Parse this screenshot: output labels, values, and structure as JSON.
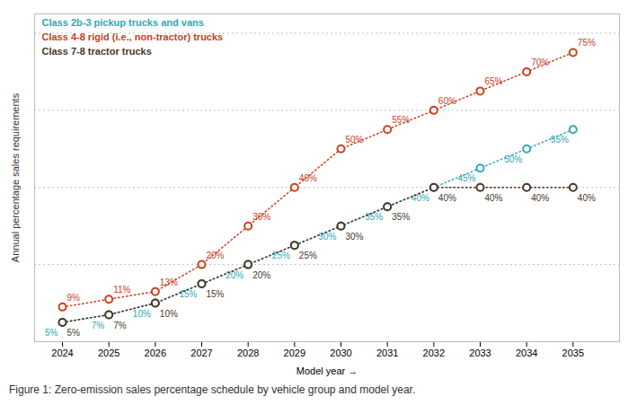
{
  "chart_data": {
    "type": "line",
    "x_label": "Model year",
    "y_label": "Annual percentage sales requirements",
    "caption": "Figure 1: Zero-emission sales percentage schedule by vehicle group and model year.",
    "x": [
      2024,
      2025,
      2026,
      2027,
      2028,
      2029,
      2030,
      2031,
      2032,
      2033,
      2034,
      2035
    ],
    "series": [
      {
        "name": "Class 2b-3 pickup trucks and vans",
        "color": "#2fa8b5",
        "values": [
          5,
          7,
          10,
          15,
          20,
          25,
          30,
          35,
          40,
          45,
          50,
          55
        ],
        "value_labels": [
          "5%",
          "7%",
          "10%",
          "15%",
          "20%",
          "25%",
          "30%",
          "35%",
          "40%",
          "45%",
          "50%",
          "55%"
        ]
      },
      {
        "name": "Class 4-8 rigid (i.e., non-tractor) trucks",
        "color": "#c9401e",
        "values": [
          9,
          11,
          13,
          20,
          30,
          40,
          50,
          55,
          60,
          65,
          70,
          75
        ],
        "value_labels": [
          "9%",
          "11%",
          "13%",
          "20%",
          "30%",
          "40%",
          "50%",
          "55%",
          "60%",
          "65%",
          "70%",
          "75%"
        ]
      },
      {
        "name": "Class 7-8 tractor trucks",
        "color": "#4a3728",
        "values": [
          5,
          7,
          10,
          15,
          20,
          25,
          30,
          35,
          40,
          40,
          40,
          40
        ],
        "value_labels": [
          "5%",
          "7%",
          "10%",
          "15%",
          "20%",
          "25%",
          "30%",
          "35%",
          "40%",
          "40%",
          "40%",
          "40%"
        ]
      }
    ],
    "xlim": [
      2023.4,
      2036.0
    ],
    "xticks": [
      2024,
      2025,
      2026,
      2027,
      2028,
      2029,
      2030,
      2031,
      2032,
      2033,
      2034,
      2035
    ],
    "ylim": [
      0,
      85
    ],
    "yticks": [
      20,
      40,
      60,
      80
    ],
    "grid": true,
    "tick_labels": "x",
    "legend": "upper left",
    "data_labels": true,
    "marker": "circle",
    "line_style": "dotted"
  }
}
